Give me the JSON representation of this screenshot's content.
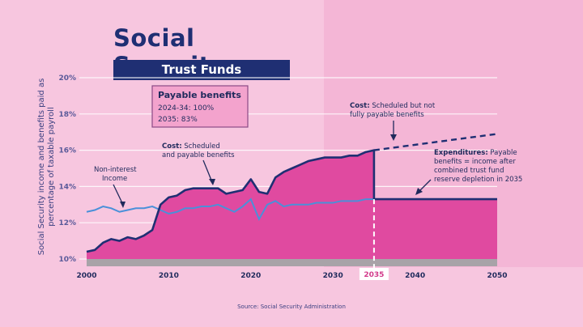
{
  "title": "Social Security",
  "subtitle": "Trust Funds",
  "ylabel": "Social Security income and benefits paid as percentage of taxable payroll",
  "source": "Source: Social Security Administration",
  "colors": {
    "background": "#f7c6df",
    "cost_fill": "#e04aa0",
    "cost_line": "#1f2f73",
    "income_line": "#4a90d9",
    "base": "#a8a3a8"
  },
  "box": {
    "heading": "Payable benefits",
    "line1": "2024-34: 100%",
    "line2": "2035: 83%"
  },
  "annotations": {
    "noninterest_1": "Non-interest",
    "noninterest_2": "Income",
    "cost_bold": "Cost:",
    "cost_1": "Scheduled",
    "cost_2": "and payable benefits",
    "cost2_bold": "Cost:",
    "cost2_1": "Scheduled but not",
    "cost2_2": "fully payable benefits",
    "exp_bold": "Expenditures:",
    "exp_1": "Payable",
    "exp_2": "benefits = income after",
    "exp_3": "combined trust fund",
    "exp_4": "reserve depletion in 2035"
  },
  "chart_data": {
    "type": "area",
    "xlim": [
      2000,
      2050
    ],
    "ylim": [
      10,
      20
    ],
    "yticks": [
      "10%",
      "12%",
      "14%",
      "16%",
      "18%",
      "20%"
    ],
    "xticks": [
      "2000",
      "2010",
      "2020",
      "2030",
      "2035",
      "2040",
      "2050"
    ],
    "highlight_year": 2035,
    "series": [
      {
        "name": "Cost",
        "x": [
          2000,
          2001,
          2002,
          2003,
          2004,
          2005,
          2006,
          2007,
          2008,
          2009,
          2010,
          2011,
          2012,
          2013,
          2014,
          2015,
          2016,
          2017,
          2018,
          2019,
          2020,
          2021,
          2022,
          2023,
          2024,
          2025,
          2026,
          2027,
          2028,
          2029,
          2030,
          2031,
          2032,
          2033,
          2034,
          2035
        ],
        "values": [
          10.4,
          10.5,
          10.9,
          11.1,
          11.0,
          11.2,
          11.1,
          11.3,
          11.6,
          13.0,
          13.4,
          13.5,
          13.8,
          13.9,
          13.9,
          13.9,
          13.9,
          13.6,
          13.7,
          13.8,
          14.4,
          13.7,
          13.6,
          14.5,
          14.8,
          15.0,
          15.2,
          15.4,
          15.5,
          15.6,
          15.6,
          15.6,
          15.7,
          15.7,
          15.9,
          16.0
        ]
      },
      {
        "name": "Non-interest Income",
        "x": [
          2000,
          2001,
          2002,
          2003,
          2004,
          2005,
          2006,
          2007,
          2008,
          2009,
          2010,
          2011,
          2012,
          2013,
          2014,
          2015,
          2016,
          2017,
          2018,
          2019,
          2020,
          2021,
          2022,
          2023,
          2024,
          2025,
          2026,
          2027,
          2028,
          2029,
          2030,
          2031,
          2032,
          2033,
          2034,
          2035
        ],
        "values": [
          12.6,
          12.7,
          12.9,
          12.8,
          12.6,
          12.7,
          12.8,
          12.8,
          12.9,
          12.7,
          12.5,
          12.6,
          12.8,
          12.8,
          12.9,
          12.9,
          13.0,
          12.8,
          12.6,
          12.9,
          13.3,
          12.2,
          13.0,
          13.2,
          12.9,
          13.0,
          13.0,
          13.0,
          13.1,
          13.1,
          13.1,
          13.2,
          13.2,
          13.2,
          13.3,
          13.3
        ]
      },
      {
        "name": "Scheduled but not fully payable benefits",
        "x": [
          2035,
          2050
        ],
        "values": [
          16.0,
          16.9
        ],
        "dashed": true
      },
      {
        "name": "Expenditures",
        "x": [
          2035,
          2050
        ],
        "values": [
          13.3,
          13.3
        ]
      }
    ]
  }
}
